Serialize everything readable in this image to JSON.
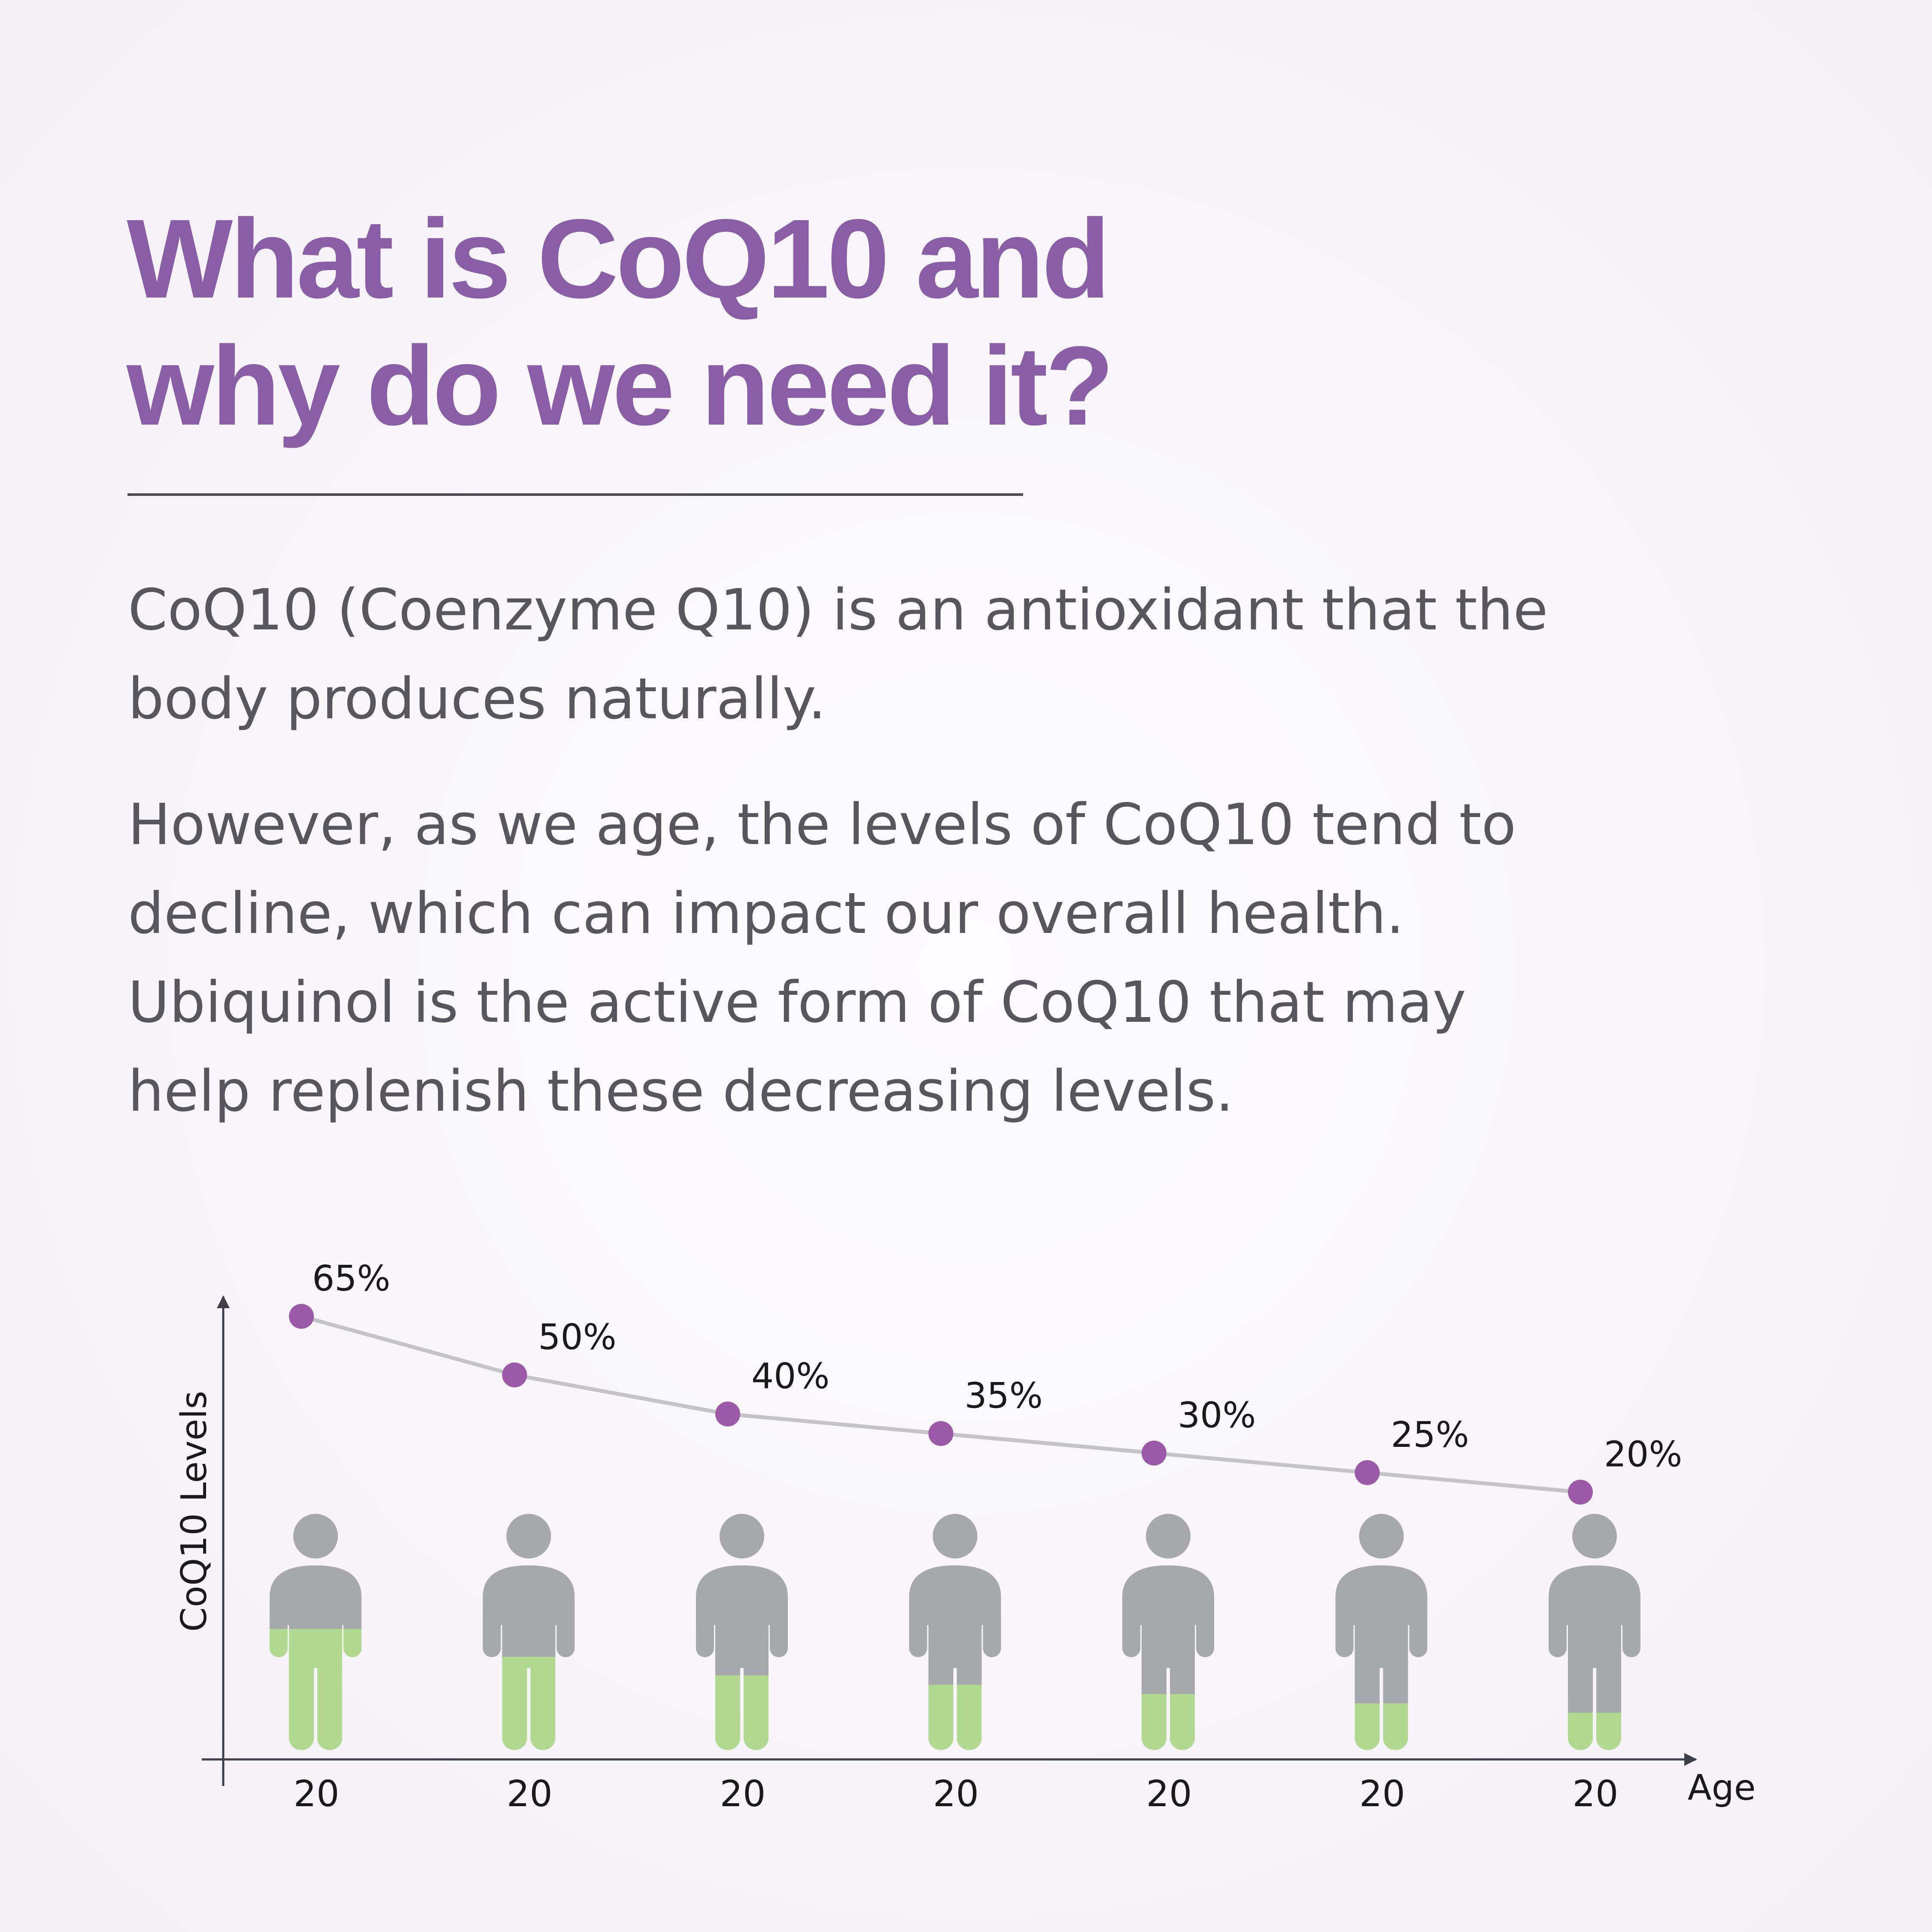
{
  "headline": {
    "line1": "What is CoQ10 and",
    "line2": "why do we need it?"
  },
  "paragraphs": [
    {
      "lines": [
        "CoQ10 (Coenzyme Q10) is an antioxidant that the",
        "body produces naturally."
      ]
    },
    {
      "lines": [
        "However, as we age, the levels of CoQ10 tend to",
        "decline, which can impact our overall health.",
        "Ubiquinol is the active form of CoQ10 that may",
        "help replenish these decreasing levels."
      ]
    }
  ],
  "colors": {
    "headline": "#8a5ea6",
    "body_text": "#56565c",
    "point": "#9b59a8",
    "line": "#c4c4c8",
    "figure_gray": "#a7a8ab",
    "figure_green": "#b1d98f",
    "axis": "#3d3f4a"
  },
  "chart_data": {
    "type": "line",
    "categories": [
      "20",
      "20",
      "20",
      "20",
      "20",
      "20",
      "20"
    ],
    "values": [
      65,
      50,
      40,
      35,
      30,
      25,
      20
    ],
    "value_labels": [
      "65%",
      "50%",
      "40%",
      "35%",
      "30%",
      "25%",
      "20%"
    ],
    "ylabel": "CoQ10 Levels",
    "xlabel": "Age",
    "y_ticks_shown": false,
    "grid": false,
    "legend": "none",
    "pictograph": {
      "icon": "person-icon",
      "fill_fraction": [
        0.65,
        0.5,
        0.4,
        0.35,
        0.3,
        0.25,
        0.2
      ]
    }
  }
}
